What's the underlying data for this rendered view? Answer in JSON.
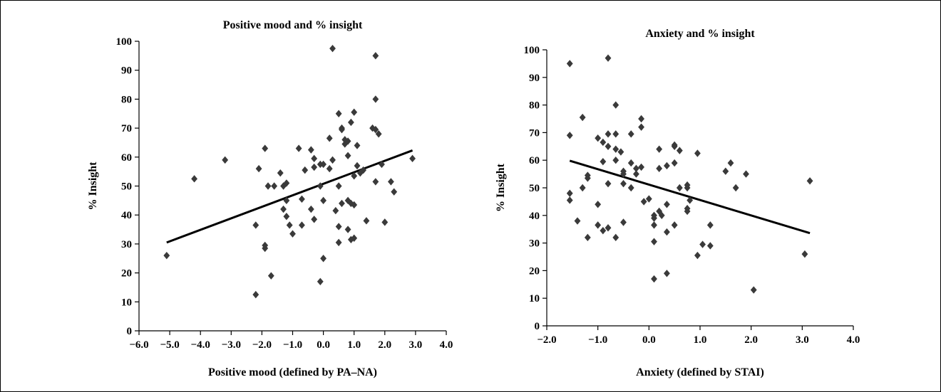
{
  "chart_data": [
    {
      "type": "scatter",
      "title": "Positive mood and % insight",
      "xlabel": "Positive mood (defined by PA–NA)",
      "ylabel": "% Insight",
      "xlim": [
        -6.0,
        4.0
      ],
      "ylim": [
        0,
        100
      ],
      "x_ticks": [
        "−6.0",
        "−5.0",
        "−4.0",
        "−3.0",
        "−2.0",
        "−1.0",
        "0.0",
        "1.0",
        "2.0",
        "3.0",
        "4.0"
      ],
      "x_tick_values": [
        -6,
        -5,
        -4,
        -3,
        -2,
        -1,
        0,
        1,
        2,
        3,
        4
      ],
      "y_ticks": [
        "0",
        "10",
        "20",
        "30",
        "40",
        "50",
        "60",
        "70",
        "80",
        "90",
        "100"
      ],
      "y_tick_values": [
        0,
        10,
        20,
        30,
        40,
        50,
        60,
        70,
        80,
        90,
        100
      ],
      "marker_color": "#3a3a3a",
      "trendline": {
        "x": [
          -5.1,
          2.9
        ],
        "y": [
          30.5,
          62.3
        ]
      },
      "points": [
        [
          -5.1,
          26
        ],
        [
          -4.2,
          52.5
        ],
        [
          -3.2,
          59
        ],
        [
          -2.2,
          12.5
        ],
        [
          -2.2,
          36.5
        ],
        [
          -2.1,
          56
        ],
        [
          -1.9,
          63
        ],
        [
          -1.9,
          29.5
        ],
        [
          -1.9,
          28.5
        ],
        [
          -1.8,
          50
        ],
        [
          -1.7,
          19
        ],
        [
          -1.6,
          50
        ],
        [
          -1.4,
          54.5
        ],
        [
          -1.3,
          42
        ],
        [
          -1.3,
          50
        ],
        [
          -1.2,
          51
        ],
        [
          -1.2,
          45
        ],
        [
          -1.2,
          39.5
        ],
        [
          -1.1,
          36.5
        ],
        [
          -1.0,
          33.5
        ],
        [
          -0.8,
          63
        ],
        [
          -0.7,
          45.5
        ],
        [
          -0.7,
          36.5
        ],
        [
          -0.6,
          55.5
        ],
        [
          -0.4,
          62.5
        ],
        [
          -0.4,
          42
        ],
        [
          -0.3,
          56.5
        ],
        [
          -0.3,
          59.5
        ],
        [
          -0.3,
          38.5
        ],
        [
          -0.1,
          57.5
        ],
        [
          -0.1,
          50
        ],
        [
          -0.1,
          17
        ],
        [
          0.0,
          25
        ],
        [
          0.0,
          45
        ],
        [
          0.0,
          57.5
        ],
        [
          0.2,
          56
        ],
        [
          0.2,
          66.5
        ],
        [
          0.3,
          59
        ],
        [
          0.3,
          97.5
        ],
        [
          0.4,
          41.5
        ],
        [
          0.5,
          30.5
        ],
        [
          0.5,
          36
        ],
        [
          0.5,
          50
        ],
        [
          0.5,
          75
        ],
        [
          0.6,
          70
        ],
        [
          0.6,
          69.5
        ],
        [
          0.6,
          44
        ],
        [
          0.7,
          64.5
        ],
        [
          0.7,
          66
        ],
        [
          0.8,
          65.5
        ],
        [
          0.8,
          60.5
        ],
        [
          0.8,
          45
        ],
        [
          0.8,
          35
        ],
        [
          0.9,
          72
        ],
        [
          0.9,
          44
        ],
        [
          0.9,
          31.5
        ],
        [
          1.0,
          43.5
        ],
        [
          1.0,
          32
        ],
        [
          1.0,
          53.5
        ],
        [
          1.0,
          75.5
        ],
        [
          1.1,
          64
        ],
        [
          1.1,
          57
        ],
        [
          1.2,
          54.5
        ],
        [
          1.3,
          55.5
        ],
        [
          1.4,
          38
        ],
        [
          1.6,
          70
        ],
        [
          1.7,
          95
        ],
        [
          1.7,
          69.5
        ],
        [
          1.7,
          51.5
        ],
        [
          1.7,
          80
        ],
        [
          1.8,
          68
        ],
        [
          1.9,
          57.5
        ],
        [
          2.0,
          37.5
        ],
        [
          2.2,
          51.5
        ],
        [
          2.3,
          48
        ],
        [
          2.9,
          59.5
        ]
      ]
    },
    {
      "type": "scatter",
      "title": "Anxiety and % insight",
      "xlabel": "Anxiety (defined by STAI)",
      "ylabel": "% Insight",
      "xlim": [
        -2.0,
        4.0
      ],
      "ylim": [
        0,
        100
      ],
      "x_ticks": [
        "−2.0",
        "−1.0",
        "0.0",
        "1.0",
        "2.0",
        "3.0",
        "4.0"
      ],
      "x_tick_values": [
        -2,
        -1,
        0,
        1,
        2,
        3,
        4
      ],
      "y_ticks": [
        "0",
        "10",
        "20",
        "30",
        "40",
        "50",
        "60",
        "70",
        "80",
        "90",
        "100"
      ],
      "y_tick_values": [
        0,
        10,
        20,
        30,
        40,
        50,
        60,
        70,
        80,
        90,
        100
      ],
      "marker_color": "#3a3a3a",
      "trendline": {
        "x": [
          -1.55,
          3.15
        ],
        "y": [
          59.8,
          33.6
        ]
      },
      "points": [
        [
          -1.55,
          95
        ],
        [
          -1.55,
          69
        ],
        [
          -1.55,
          48
        ],
        [
          -1.55,
          45.5
        ],
        [
          -1.4,
          38
        ],
        [
          -1.3,
          75.5
        ],
        [
          -1.3,
          50
        ],
        [
          -1.2,
          54.5
        ],
        [
          -1.2,
          53.5
        ],
        [
          -1.2,
          32
        ],
        [
          -1.0,
          68
        ],
        [
          -1.0,
          44
        ],
        [
          -1.0,
          36.5
        ],
        [
          -0.9,
          66.5
        ],
        [
          -0.9,
          59.5
        ],
        [
          -0.9,
          34.5
        ],
        [
          -0.8,
          97
        ],
        [
          -0.8,
          69.5
        ],
        [
          -0.8,
          65
        ],
        [
          -0.8,
          51.5
        ],
        [
          -0.8,
          35.5
        ],
        [
          -0.65,
          80
        ],
        [
          -0.65,
          69.5
        ],
        [
          -0.65,
          64
        ],
        [
          -0.65,
          60
        ],
        [
          -0.65,
          32
        ],
        [
          -0.55,
          63
        ],
        [
          -0.5,
          56
        ],
        [
          -0.5,
          55
        ],
        [
          -0.5,
          51.5
        ],
        [
          -0.5,
          37.5
        ],
        [
          -0.35,
          69.5
        ],
        [
          -0.35,
          59
        ],
        [
          -0.35,
          50
        ],
        [
          -0.25,
          57
        ],
        [
          -0.25,
          55
        ],
        [
          -0.15,
          75
        ],
        [
          -0.15,
          72
        ],
        [
          -0.15,
          57.5
        ],
        [
          -0.1,
          45
        ],
        [
          0.0,
          46
        ],
        [
          0.1,
          40
        ],
        [
          0.1,
          39
        ],
        [
          0.1,
          36.5
        ],
        [
          0.1,
          30.5
        ],
        [
          0.1,
          17
        ],
        [
          0.2,
          64
        ],
        [
          0.2,
          57
        ],
        [
          0.2,
          41.5
        ],
        [
          0.25,
          40
        ],
        [
          0.35,
          58
        ],
        [
          0.35,
          44
        ],
        [
          0.35,
          34
        ],
        [
          0.35,
          19
        ],
        [
          0.5,
          65.5
        ],
        [
          0.5,
          65
        ],
        [
          0.5,
          59
        ],
        [
          0.5,
          36.5
        ],
        [
          0.6,
          63.5
        ],
        [
          0.6,
          50
        ],
        [
          0.75,
          51
        ],
        [
          0.75,
          50
        ],
        [
          0.75,
          42.5
        ],
        [
          0.75,
          41.5
        ],
        [
          0.8,
          45.5
        ],
        [
          0.95,
          62.5
        ],
        [
          0.95,
          25.5
        ],
        [
          1.05,
          29.5
        ],
        [
          1.2,
          36.5
        ],
        [
          1.2,
          29
        ],
        [
          1.5,
          56
        ],
        [
          1.6,
          59
        ],
        [
          1.7,
          50
        ],
        [
          1.9,
          55
        ],
        [
          2.05,
          13
        ],
        [
          3.05,
          26
        ],
        [
          3.15,
          52.5
        ]
      ]
    }
  ]
}
